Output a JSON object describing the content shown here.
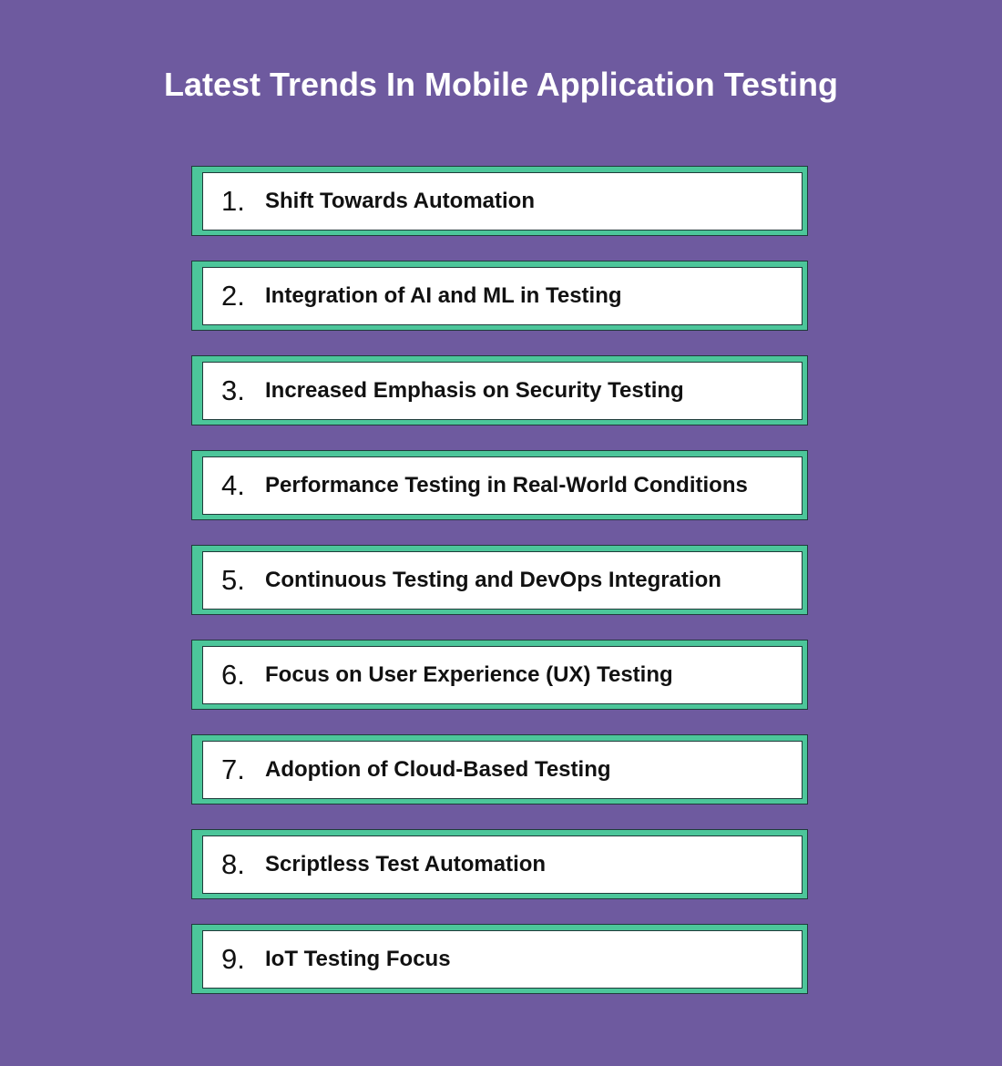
{
  "title": "Latest Trends In Mobile Application Testing",
  "items": [
    {
      "num": "1.",
      "label": "Shift Towards Automation"
    },
    {
      "num": "2.",
      "label": "Integration of AI and ML in Testing"
    },
    {
      "num": "3.",
      "label": "Increased Emphasis on Security Testing"
    },
    {
      "num": "4.",
      "label": "Performance Testing in Real-World Conditions"
    },
    {
      "num": "5.",
      "label": "Continuous Testing and DevOps Integration"
    },
    {
      "num": "6.",
      "label": "Focus on User Experience (UX) Testing"
    },
    {
      "num": "7.",
      "label": "Adoption of Cloud-Based Testing"
    },
    {
      "num": "8.",
      "label": "Scriptless Test Automation"
    },
    {
      "num": "9.",
      "label": "IoT Testing Focus"
    }
  ],
  "colors": {
    "background": "#6e5a9f",
    "accent": "#4cc69a"
  }
}
